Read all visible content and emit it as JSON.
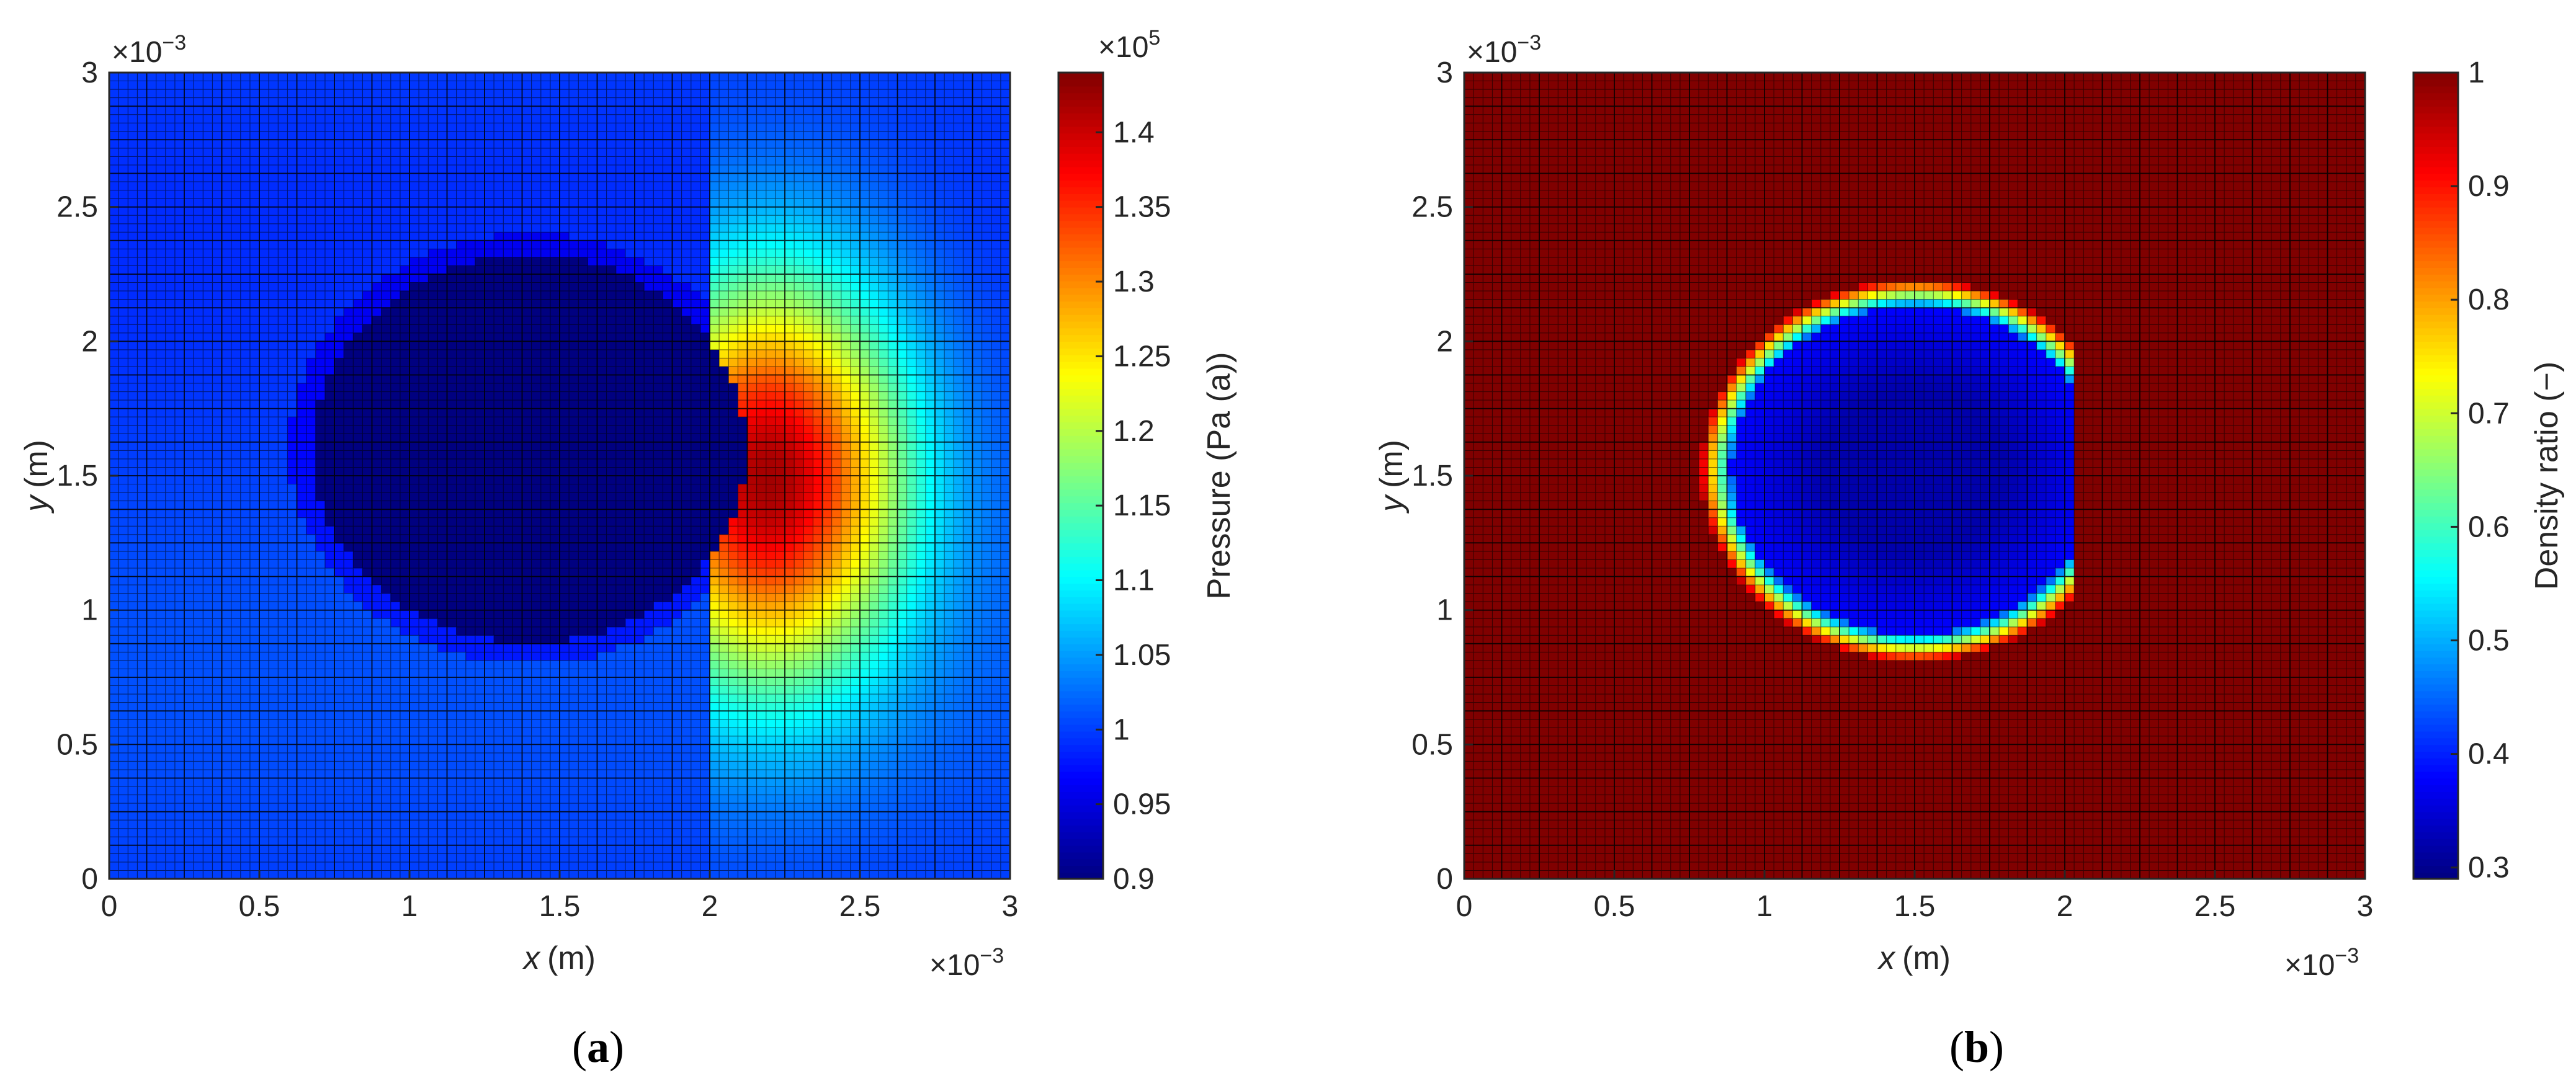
{
  "figure": {
    "panels": [
      {
        "caption_letter": "a"
      },
      {
        "caption_letter": "b"
      }
    ]
  },
  "chart_data": [
    {
      "type": "heatmap",
      "description_field": "pressure",
      "xlabel_var": "x",
      "xlabel_unit": "(m)",
      "ylabel_var": "y",
      "ylabel_unit": "(m)",
      "x_scale_label": "×10",
      "x_scale_exp": "−3",
      "y_scale_label": "×10",
      "y_scale_exp": "−3",
      "xlim": [
        0,
        3
      ],
      "ylim": [
        0,
        3
      ],
      "xticks": [
        "0",
        "0.5",
        "1",
        "1.5",
        "2",
        "2.5",
        "3"
      ],
      "yticks": [
        "0",
        "0.5",
        "1",
        "1.5",
        "2",
        "2.5",
        "3"
      ],
      "colormap": "jet",
      "colorbar": {
        "label": "Pressure (Pa (a))",
        "scale_label": "×10",
        "scale_exp": "5",
        "lim": [
          0.9,
          1.44
        ],
        "ticks": [
          "0.9",
          "0.95",
          "1",
          "1.05",
          "1.1",
          "1.15",
          "1.2",
          "1.25",
          "1.3",
          "1.35",
          "1.4"
        ]
      },
      "field": {
        "background": 1.0,
        "bubble": {
          "center": [
            1.4,
            1.6
          ],
          "radius": 0.72,
          "value": 0.9
        },
        "high_pressure_peak": {
          "x": 2.2,
          "y": 1.5,
          "value": 1.42
        }
      },
      "mesh": {
        "visible": true,
        "line_color": "#000000"
      }
    },
    {
      "type": "heatmap",
      "description_field": "density_ratio",
      "xlabel_var": "x",
      "xlabel_unit": "(m)",
      "ylabel_var": "y",
      "ylabel_unit": "(m)",
      "x_scale_label": "×10",
      "x_scale_exp": "−3",
      "y_scale_label": "×10",
      "y_scale_exp": "−3",
      "xlim": [
        0,
        3
      ],
      "ylim": [
        0,
        3
      ],
      "xticks": [
        "0",
        "0.5",
        "1",
        "1.5",
        "2",
        "2.5",
        "3"
      ],
      "yticks": [
        "0",
        "0.5",
        "1",
        "1.5",
        "2",
        "2.5",
        "3"
      ],
      "colormap": "jet",
      "colorbar": {
        "label": "Density ratio (−)",
        "lim": [
          0.29,
          1.0
        ],
        "ticks": [
          "0.3",
          "0.4",
          "0.5",
          "0.6",
          "0.7",
          "0.8",
          "0.9",
          "1"
        ]
      },
      "field": {
        "background": 1.0,
        "bubble": {
          "center": [
            1.5,
            1.52
          ],
          "radius": 0.71,
          "value": 0.32
        },
        "rim_value": 0.75
      },
      "mesh": {
        "visible": true,
        "line_color": "#000000"
      }
    }
  ]
}
